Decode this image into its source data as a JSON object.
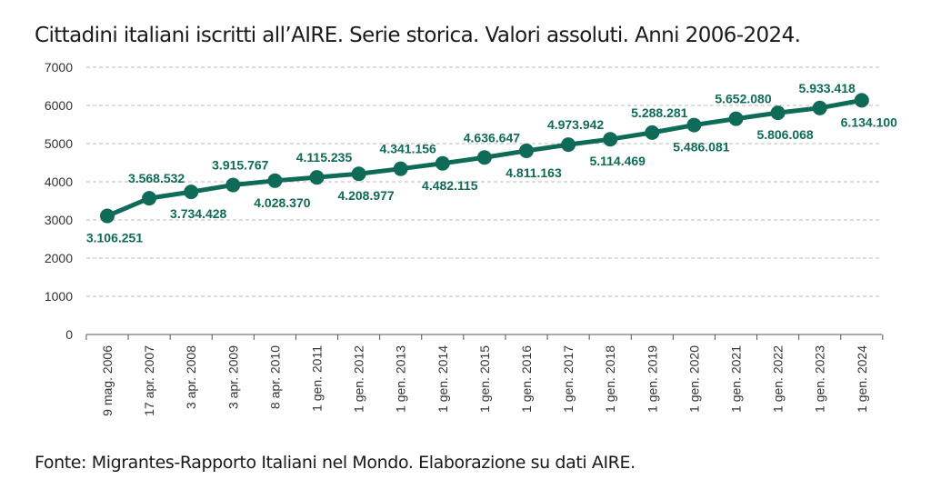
{
  "title": "Cittadini italiani iscritti all’AIRE. Serie storica. Valori assoluti. Anni 2006-2024.",
  "source": "Fonte: Migrantes-Rapporto Italiani nel Mondo. Elaborazione su dati AIRE.",
  "colors": {
    "series": "#0f6b57",
    "grid": "#bdbdbd",
    "axis": "#555555"
  },
  "chart_data": {
    "type": "line",
    "title": "Cittadini italiani iscritti all’AIRE. Serie storica. Valori assoluti. Anni 2006-2024.",
    "xlabel": "",
    "ylabel": "",
    "ylim": [
      0,
      7000
    ],
    "yticks": [
      0,
      1000,
      2000,
      3000,
      4000,
      5000,
      6000,
      7000
    ],
    "grid": true,
    "categories": [
      "9 mag. 2006",
      "17 apr. 2007",
      "3 apr. 2008",
      "3 apr. 2009",
      "8 apr. 2010",
      "1 gen. 2011",
      "1 gen. 2012",
      "1 gen. 2013",
      "1 gen. 2014",
      "1 gen. 2015",
      "1 gen. 2016",
      "1 gen. 2017",
      "1 gen. 2018",
      "1 gen. 2019",
      "1 gen. 2020",
      "1 gen. 2021",
      "1 gen. 2022",
      "1 gen. 2023",
      "1 gen. 2024"
    ],
    "values": [
      3106.251,
      3568.532,
      3734.428,
      3915.767,
      4028.37,
      4115.235,
      4208.977,
      4341.156,
      4482.115,
      4636.647,
      4811.163,
      4973.942,
      5114.469,
      5288.281,
      5486.081,
      5652.08,
      5806.068,
      5933.418,
      6134.1
    ],
    "data_labels": [
      "3.106.251",
      "3.568.532",
      "3.734.428",
      "3.915.767",
      "4.028.370",
      "4.115.235",
      "4.208.977",
      "4.341.156",
      "4.482.115",
      "4.636.647",
      "4.811.163",
      "4.973.942",
      "5.114.469",
      "5.288.281",
      "5.486.081",
      "5.652.080",
      "5.806.068",
      "5.933.418",
      "6.134.100"
    ],
    "label_positions": [
      "below",
      "above",
      "below",
      "above",
      "below",
      "above",
      "below",
      "above",
      "below",
      "above",
      "below",
      "above",
      "below",
      "above",
      "below",
      "above",
      "below",
      "above",
      "below"
    ]
  }
}
